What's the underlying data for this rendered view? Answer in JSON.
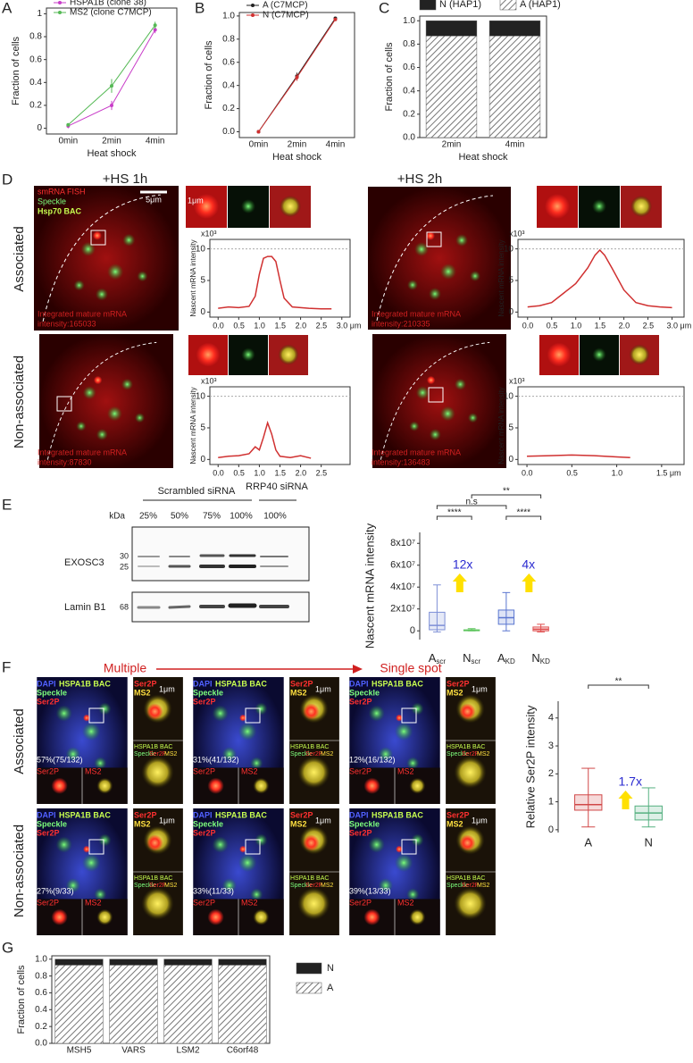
{
  "panel_labels": [
    "A",
    "B",
    "C",
    "D",
    "E",
    "F",
    "G"
  ],
  "chart_data": [
    {
      "type": "line",
      "categories": [
        "0min",
        "2min",
        "4min"
      ],
      "xlabel": "Heat shock",
      "ylabel": "Fraction of cells",
      "ylim": [
        -0.05,
        1.05
      ],
      "yticks": [
        0,
        0.2,
        0.4,
        0.6,
        0.8,
        1
      ],
      "legend": "top-left",
      "series": [
        {
          "name": "HSPA1B (clone 38)",
          "color": "#c83cc8",
          "values": [
            0.02,
            0.2,
            0.86
          ],
          "errors": [
            0.02,
            0.04,
            0.03
          ]
        },
        {
          "name": "MS2 (clone C7MCP)",
          "color": "#55b955",
          "values": [
            0.03,
            0.37,
            0.9
          ],
          "errors": [
            0.01,
            0.06,
            0.03
          ]
        }
      ]
    },
    {
      "type": "line",
      "categories": [
        "0min",
        "2min",
        "4min"
      ],
      "xlabel": "Heat shock",
      "ylabel": "Fraction of cells",
      "ylim": [
        -0.05,
        1.03
      ],
      "yticks": [
        {
          "value": 0,
          "label": "0.0"
        },
        {
          "value": 0.2,
          "label": "0.2"
        },
        {
          "value": 0.4,
          "label": "0.4"
        },
        {
          "value": 0.6,
          "label": "0.6"
        },
        {
          "value": 0.8,
          "label": "0.8"
        },
        {
          "value": 1,
          "label": "1.0"
        }
      ],
      "legend": "top-left",
      "series": [
        {
          "name": "A (C7MCP)",
          "color": "#222222",
          "values": [
            0,
            0.48,
            0.98
          ],
          "errors": [
            0,
            0.03,
            0.01
          ]
        },
        {
          "name": "N (C7MCP)",
          "color": "#d03030",
          "values": [
            0,
            0.47,
            0.97
          ],
          "errors": [
            0,
            0.03,
            0.01
          ]
        }
      ]
    },
    {
      "type": "bar",
      "stacked": true,
      "categories": [
        "2min",
        "4min"
      ],
      "xlabel": "Heat shock",
      "ylabel": "Fraction of cells",
      "ylim": [
        0,
        1.04
      ],
      "yticks": [
        {
          "value": 0,
          "label": "0.0"
        },
        {
          "value": 0.2,
          "label": "0.2"
        },
        {
          "value": 0.4,
          "label": "0.4"
        },
        {
          "value": 0.6,
          "label": "0.6"
        },
        {
          "value": 0.8,
          "label": "0.8"
        },
        {
          "value": 1,
          "label": "1.0"
        }
      ],
      "legend": "top",
      "series": [
        {
          "name": "N (HAP1)",
          "color": "#222222",
          "values": [
            0.13,
            0.13
          ]
        },
        {
          "name": "A (HAP1)",
          "color": "hatch",
          "values": [
            0.87,
            0.87
          ]
        }
      ]
    },
    {
      "type": "line",
      "ylabel": "Nascent mRNA intensity",
      "y_multiplier": "x10³",
      "reference_y": 10,
      "xlim": [
        -0.2,
        3.2
      ],
      "ylim": [
        -0.8,
        11.5
      ],
      "yticks": [
        0,
        5,
        10
      ],
      "xticks": [
        {
          "value": 0,
          "label": "0.0"
        },
        {
          "value": 0.5,
          "label": "0.5"
        },
        {
          "value": 1,
          "label": "1.0"
        },
        {
          "value": 1.5,
          "label": "1.5"
        },
        {
          "value": 2,
          "label": "2.0"
        },
        {
          "value": 2.5,
          "label": "2.5"
        },
        {
          "value": 3,
          "label": "3.0 μm"
        }
      ],
      "series": [
        {
          "color": "#d03030",
          "x": [
            0,
            0.25,
            0.5,
            0.75,
            0.9,
            1.0,
            1.1,
            1.2,
            1.3,
            1.4,
            1.5,
            1.6,
            1.8,
            2.0,
            2.2,
            2.5,
            2.75
          ],
          "values": [
            0.6,
            0.8,
            0.7,
            0.9,
            2.5,
            6,
            8.5,
            8.8,
            8.8,
            8,
            5,
            2.2,
            0.8,
            0.7,
            0.6,
            0.5,
            0.5
          ]
        }
      ]
    },
    {
      "type": "line",
      "ylabel": "Nascent mRNA intensity",
      "y_multiplier": "x10³",
      "reference_y": 10,
      "xlim": [
        -0.2,
        3.25
      ],
      "ylim": [
        -0.8,
        11.5
      ],
      "yticks": [
        0,
        5,
        10
      ],
      "xticks": [
        {
          "value": 0,
          "label": "0.0"
        },
        {
          "value": 0.5,
          "label": "0.5"
        },
        {
          "value": 1,
          "label": "1.0"
        },
        {
          "value": 1.5,
          "label": "1.5"
        },
        {
          "value": 2,
          "label": "2.0"
        },
        {
          "value": 2.5,
          "label": "2.5"
        },
        {
          "value": 3,
          "label": "3.0 μm"
        }
      ],
      "series": [
        {
          "color": "#d03030",
          "x": [
            0,
            0.25,
            0.5,
            0.75,
            1.0,
            1.25,
            1.4,
            1.5,
            1.6,
            1.75,
            2.0,
            2.25,
            2.5,
            2.75,
            3.0
          ],
          "values": [
            0.8,
            1,
            1.5,
            3,
            4.5,
            7,
            9,
            9.8,
            9,
            7,
            3.5,
            1.5,
            1,
            0.8,
            0.7
          ]
        }
      ]
    },
    {
      "type": "line",
      "ylabel": "Nascent mRNA intensity",
      "y_multiplier": "x10³",
      "reference_y": 10,
      "xlim": [
        -0.2,
        3.2
      ],
      "ylim": [
        -0.8,
        11.5
      ],
      "yticks": [
        0,
        5,
        10
      ],
      "xticks": [
        {
          "value": 0,
          "label": "0.0"
        },
        {
          "value": 0.5,
          "label": "0.5"
        },
        {
          "value": 1,
          "label": "1.0"
        },
        {
          "value": 1.5,
          "label": "1.5"
        },
        {
          "value": 2,
          "label": "2.0"
        },
        {
          "value": 2.5,
          "label": "2.5"
        }
      ],
      "series": [
        {
          "color": "#d03030",
          "x": [
            0,
            0.25,
            0.5,
            0.75,
            0.9,
            1.0,
            1.1,
            1.2,
            1.3,
            1.4,
            1.5,
            1.75,
            2.0,
            2.25
          ],
          "values": [
            0.3,
            0.5,
            0.6,
            0.9,
            2,
            1.5,
            3.5,
            5.8,
            4,
            1.5,
            0.5,
            0.3,
            0.6,
            0.2
          ]
        }
      ]
    },
    {
      "type": "line",
      "ylabel": "Nascent mRNA intensity",
      "y_multiplier": "x10³",
      "reference_y": 10,
      "xlim": [
        -0.1,
        1.75
      ],
      "ylim": [
        -0.8,
        11.5
      ],
      "yticks": [
        0,
        5,
        10
      ],
      "xticks": [
        {
          "value": 0,
          "label": "0.0"
        },
        {
          "value": 0.5,
          "label": "0.5"
        },
        {
          "value": 1,
          "label": "1.0"
        },
        {
          "value": 1.5,
          "label": "1.5 μm"
        }
      ],
      "series": [
        {
          "color": "#d03030",
          "x": [
            0,
            0.25,
            0.5,
            0.75,
            1.0,
            1.15
          ],
          "values": [
            0.5,
            0.6,
            0.7,
            0.6,
            0.4,
            0.3
          ]
        }
      ]
    },
    {
      "type": "box",
      "ylabel": "Nascent mRNA intensity",
      "categories": [
        "A",
        "N",
        "A",
        "N"
      ],
      "category_subscripts": [
        "scr",
        "scr",
        "KD",
        "KD"
      ],
      "ylim": [
        -8000000,
        90000000
      ],
      "yticks": [
        0,
        {
          "value": 20000000,
          "label": "2x10⁷"
        },
        {
          "value": 40000000,
          "label": "4x10⁷"
        },
        {
          "value": 60000000,
          "label": "6x10⁷"
        },
        {
          "value": 80000000,
          "label": "8x10⁷"
        }
      ],
      "colors": [
        "#7d8fd6",
        "#5cc45c",
        "#5a76d0",
        "#e05050"
      ],
      "boxes": [
        {
          "whisker_low": -1000000,
          "q1": 1000000,
          "median": 5000000,
          "q3": 17000000,
          "whisker_high": 42000000
        },
        {
          "whisker_low": 0,
          "q1": 200000,
          "median": 500000,
          "q3": 900000,
          "whisker_high": 2000000
        },
        {
          "whisker_low": 0,
          "q1": 6000000,
          "median": 12000000,
          "q3": 19000000,
          "whisker_high": 35000000
        },
        {
          "whisker_low": -1000000,
          "q1": 0,
          "median": 1500000,
          "q3": 3500000,
          "whisker_high": 6000000
        }
      ],
      "significance": [
        "****",
        "n.s",
        "**",
        "****"
      ],
      "folds": [
        "12x",
        "4x"
      ]
    },
    {
      "type": "box",
      "ylabel": "Relative Ser2P intensity",
      "categories": [
        "A",
        "N"
      ],
      "ylim": [
        -0.1,
        4.6
      ],
      "yticks": [
        0,
        1,
        2,
        3,
        4
      ],
      "colors": [
        "#d04848",
        "#55b080"
      ],
      "boxes": [
        {
          "whisker_low": 0.1,
          "q1": 0.7,
          "median": 0.9,
          "q3": 1.25,
          "whisker_high": 2.2
        },
        {
          "whisker_low": 0.1,
          "q1": 0.35,
          "median": 0.6,
          "q3": 0.85,
          "whisker_high": 1.5
        }
      ],
      "significance": [
        "**"
      ],
      "folds": [
        "1.7x"
      ]
    },
    {
      "type": "bar",
      "stacked": true,
      "categories": [
        "MSH5",
        "VARS",
        "LSM2",
        "C6orf48"
      ],
      "ylabel": "Fraction of cells",
      "ylim": [
        0,
        1.04
      ],
      "yticks": [
        {
          "value": 0,
          "label": "0.0"
        },
        {
          "value": 0.2,
          "label": "0.2"
        },
        {
          "value": 0.4,
          "label": "0.4"
        },
        {
          "value": 0.6,
          "label": "0.6"
        },
        {
          "value": 0.8,
          "label": "0.8"
        },
        {
          "value": 1,
          "label": "1.0"
        }
      ],
      "legend": "right",
      "series": [
        {
          "name": "N",
          "color": "#222222",
          "values": [
            0.07,
            0.07,
            0.07,
            0.07
          ]
        },
        {
          "name": "A",
          "color": "hatch",
          "values": [
            0.93,
            0.93,
            0.93,
            0.93
          ]
        }
      ]
    }
  ],
  "panel_d": {
    "conditions": [
      "+HS 1h",
      "+HS 2h"
    ],
    "rows": [
      "Associated",
      "Non-associated"
    ],
    "channels": [
      "smRNA FISH",
      "Speckle",
      "Hsp70 BAC"
    ],
    "scale_large": "5μm",
    "scale_small": "1μm",
    "intensity_prefix": "Integrated mature mRNA",
    "intensities": [
      "intensity:165033",
      "intensity:210335",
      "intensity:87830",
      "intensity:136483"
    ]
  },
  "panel_e": {
    "groups": [
      "Scrambled siRNA",
      "RRP40 siRNA"
    ],
    "lanes": [
      "25%",
      "50%",
      "75%",
      "100%",
      "100%"
    ],
    "kda": "kDa",
    "blots": [
      {
        "name": "EXOSC3",
        "markers": [
          "30",
          "25"
        ]
      },
      {
        "name": "Lamin B1",
        "markers": [
          "68"
        ]
      }
    ]
  },
  "panel_f": {
    "header_left": "Multiple",
    "header_right": "Single spot",
    "rows": [
      "Associated",
      "Non-associated"
    ],
    "channels": [
      "DAPI",
      "HSPA1B BAC",
      "Speckle",
      "Ser2P"
    ],
    "inset": [
      "Ser2P",
      "MS2"
    ],
    "merge": [
      "HSPA1B BAC",
      "Speckle",
      "Ser2P",
      "MS2"
    ],
    "scale": "1μm",
    "percentages": [
      "57%(75/132)",
      "31%(41/132)",
      "12%(16/132)",
      "27%(9/33)",
      "33%(11/33)",
      "39%(13/33)"
    ]
  }
}
